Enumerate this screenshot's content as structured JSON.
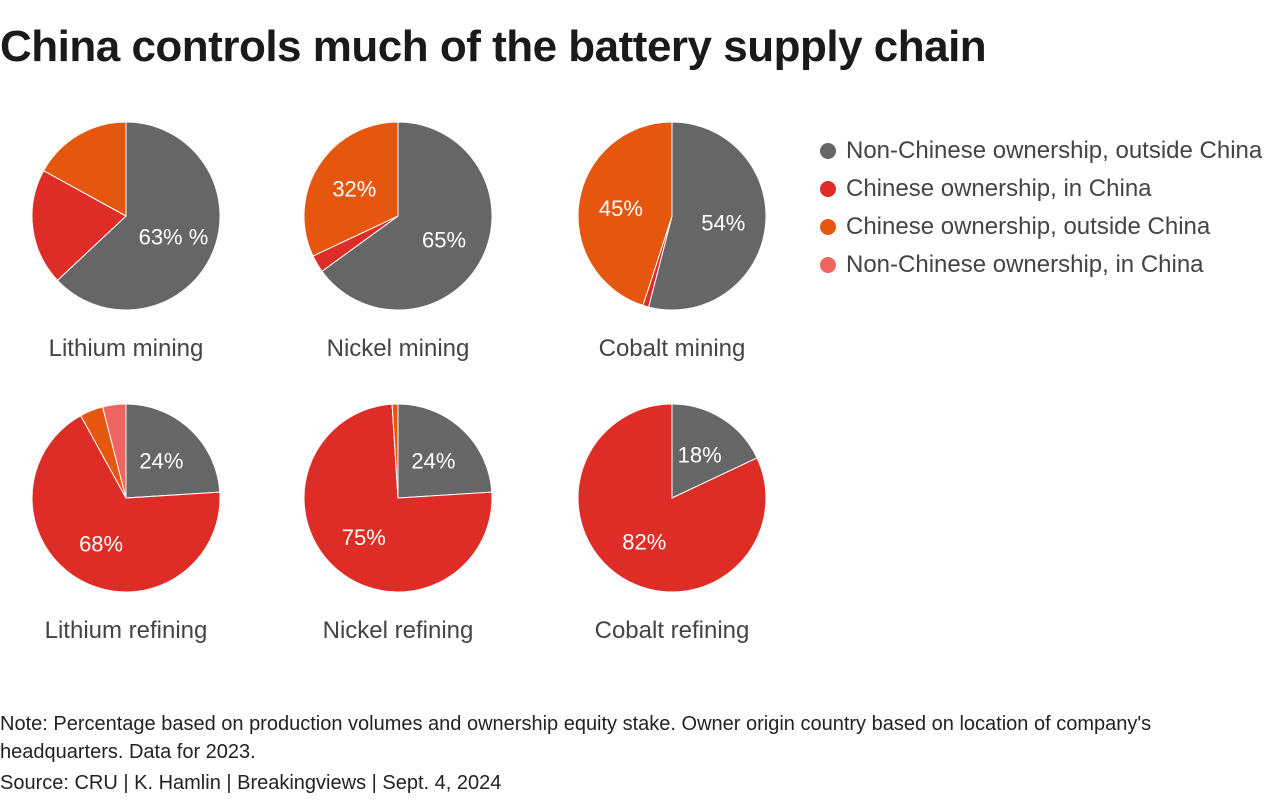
{
  "title": "China controls much of the battery supply chain",
  "colors": {
    "non_chinese_outside": "#666666",
    "chinese_in_china": "#de2c27",
    "chinese_outside": "#e5560f",
    "non_chinese_in_china": "#ef6460"
  },
  "legend": [
    {
      "label": "Non-Chinese ownership, outside China",
      "color": "#666666"
    },
    {
      "label": "Chinese ownership, in China",
      "color": "#de2c27"
    },
    {
      "label": "Chinese ownership, outside China",
      "color": "#e5560f"
    },
    {
      "label": "Non-Chinese ownership, in China",
      "color": "#ef6460"
    }
  ],
  "chart_data": {
    "type": "pie",
    "series_order": [
      "Non-Chinese ownership, outside China",
      "Chinese ownership, in China",
      "Chinese ownership, outside China",
      "Non-Chinese ownership, in China"
    ],
    "charts": [
      {
        "title": "Lithium mining",
        "values": [
          63,
          20,
          17,
          0
        ],
        "labels": [
          "63% %",
          "",
          "",
          ""
        ]
      },
      {
        "title": "Nickel mining",
        "values": [
          65,
          3,
          32,
          0
        ],
        "labels": [
          "65%",
          "",
          "32%",
          ""
        ]
      },
      {
        "title": "Cobalt mining",
        "values": [
          54,
          1,
          45,
          0
        ],
        "labels": [
          "54%",
          "",
          "45%",
          ""
        ]
      },
      {
        "title": "Lithium refining",
        "values": [
          24,
          68,
          4,
          4
        ],
        "labels": [
          "24%",
          "68%",
          "",
          ""
        ]
      },
      {
        "title": "Nickel refining",
        "values": [
          24,
          75,
          1,
          0
        ],
        "labels": [
          "24%",
          "75%",
          "",
          ""
        ]
      },
      {
        "title": "Cobalt refining",
        "values": [
          18,
          82,
          0,
          0
        ],
        "labels": [
          "18%",
          "82%",
          "",
          ""
        ]
      }
    ]
  },
  "note": "Note: Percentage based on production volumes and ownership equity stake. Owner origin country based on location of company's headquarters. Data for 2023.",
  "source": "Source: CRU | K. Hamlin | Breakingviews | Sept. 4, 2024"
}
